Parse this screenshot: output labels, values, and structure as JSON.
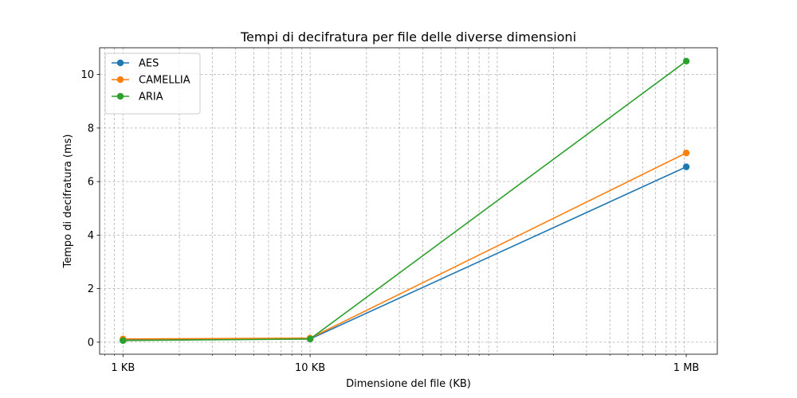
{
  "chart_data": {
    "type": "line",
    "title": "Tempi di decifratura per file delle diverse dimensioni",
    "xlabel": "Dimensione del file (KB)",
    "ylabel": "Tempo di decifratura (ms)",
    "x_scale": "log",
    "x": [
      1,
      10,
      1024
    ],
    "xlim": [
      0.75,
      1500
    ],
    "x_ticks": [
      {
        "value": 1,
        "label": "1 KB"
      },
      {
        "value": 10,
        "label": "10 KB"
      },
      {
        "value": 1024,
        "label": "1 MB"
      }
    ],
    "ylim": [
      -0.45,
      11.0
    ],
    "y_ticks": [
      0,
      2,
      4,
      6,
      8,
      10
    ],
    "grid": true,
    "legend_position": "top-left",
    "series": [
      {
        "name": "AES",
        "color": "#1f77b4",
        "values": [
          0.08,
          0.12,
          6.55
        ]
      },
      {
        "name": "CAMELLIA",
        "color": "#ff7f0e",
        "values": [
          0.12,
          0.15,
          7.07
        ]
      },
      {
        "name": "ARIA",
        "color": "#2ca02c",
        "values": [
          0.06,
          0.12,
          10.5
        ]
      }
    ]
  }
}
